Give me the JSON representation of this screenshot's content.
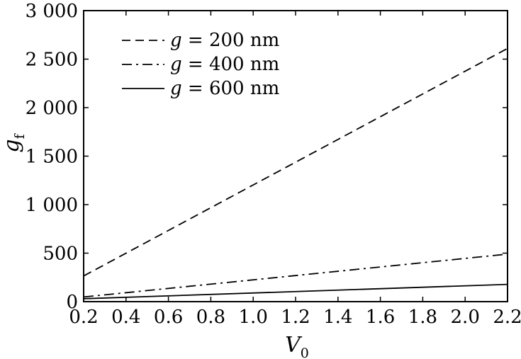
{
  "chart_data": {
    "type": "line",
    "title": "",
    "xlabel": "V",
    "xlabel_sub": "0",
    "ylabel": "g",
    "ylabel_sub": "f",
    "xlim": [
      0.2,
      2.2
    ],
    "ylim": [
      0,
      3000
    ],
    "grid": false,
    "legend_position": "top-left",
    "x_ticks": [
      0.2,
      0.4,
      0.6,
      0.8,
      1.0,
      1.2,
      1.4,
      1.6,
      1.8,
      2.0,
      2.2
    ],
    "x_tick_labels": [
      "0.2",
      "0.4",
      "0.6",
      "0.8",
      "1.0",
      "1.2",
      "1.4",
      "1.6",
      "1.8",
      "2.0",
      "2.2"
    ],
    "y_ticks": [
      0,
      500,
      1000,
      1500,
      2000,
      2500,
      3000
    ],
    "y_tick_labels": [
      "0",
      "500",
      "1 000",
      "1 500",
      "2 000",
      "2 500",
      "3 000"
    ],
    "series": [
      {
        "name": "g = 200 nm",
        "legend_var": "g",
        "legend_rest": " = 200 nm",
        "line_style": "dashed",
        "x": [
          0.2,
          2.2
        ],
        "y": [
          265,
          2610
        ]
      },
      {
        "name": "g = 400 nm",
        "legend_var": "g",
        "legend_rest": " = 400 nm",
        "line_style": "dashdot",
        "x": [
          0.2,
          2.2
        ],
        "y": [
          48,
          490
        ]
      },
      {
        "name": "g = 600 nm",
        "legend_var": "g",
        "legend_rest": " = 600 nm",
        "line_style": "solid",
        "x": [
          0.2,
          2.2
        ],
        "y": [
          30,
          178
        ]
      }
    ]
  }
}
